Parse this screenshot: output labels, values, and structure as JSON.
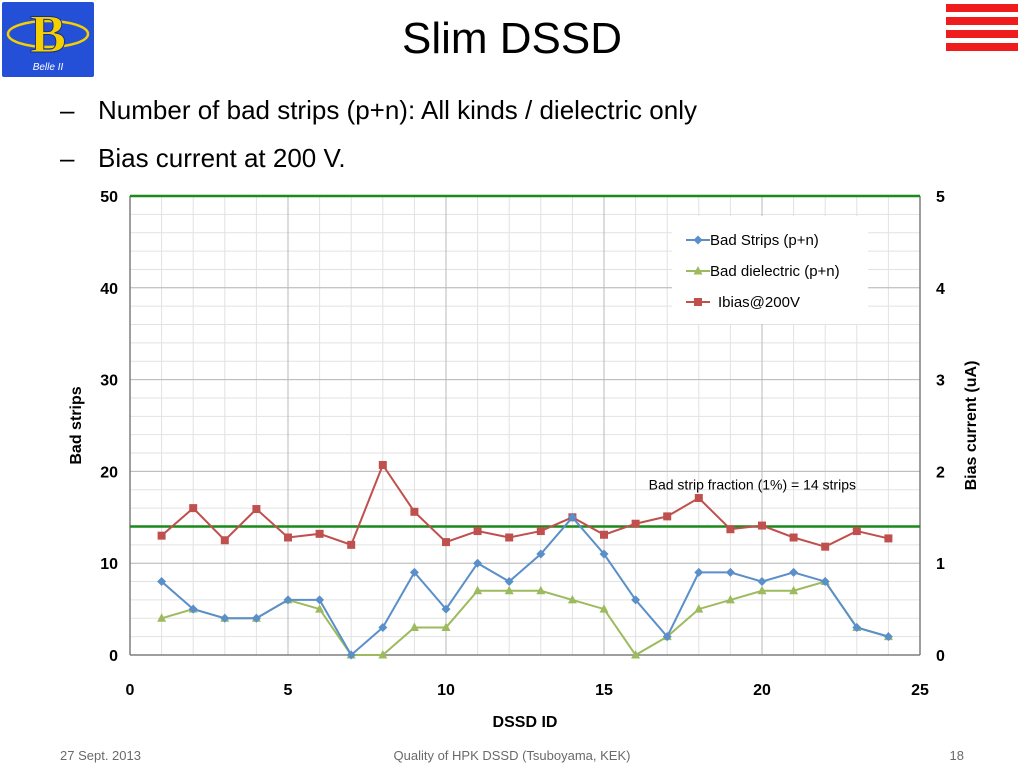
{
  "slide": {
    "title": "Slim DSSD",
    "logo_text": "Belle II",
    "bullets": [
      {
        "dash": "–",
        "text": "Number of bad strips (p+n):   All kinds / dielectric only"
      },
      {
        "dash": "–",
        "text": "Bias current at 200 V."
      }
    ],
    "footer": {
      "date": "27 Sept. 2013",
      "center": "Quality of HPK DSSD (Tsuboyama, KEK)",
      "page": "18"
    }
  },
  "colors": {
    "logo_bg": "#2450d8",
    "logo_mark": "#f5d000",
    "menu_bars": "#ee1c1c",
    "reference_lines": "#1a8a1a",
    "grid": "#cfcfcf"
  },
  "chart_data": {
    "type": "line",
    "xlabel": "DSSD ID",
    "ylabel": "Bad strips",
    "y2label": "Bias current (uA)",
    "xlim": [
      0,
      25
    ],
    "ylim": [
      0,
      50
    ],
    "y2lim": [
      0,
      5
    ],
    "xticks": [
      0,
      5,
      10,
      15,
      20,
      25
    ],
    "yticks": [
      0,
      10,
      20,
      30,
      40,
      50
    ],
    "y2ticks": [
      0,
      1,
      2,
      3,
      4,
      5
    ],
    "grid": true,
    "legend_position": "top-right",
    "reference_lines": [
      {
        "axis": "y",
        "value": 14,
        "label": "Bad strip fraction (1%) = 14 strips",
        "color": "#1a8a1a"
      },
      {
        "axis": "y",
        "value": 50,
        "label": "",
        "color": "#1a8a1a"
      }
    ],
    "x": [
      1,
      2,
      3,
      4,
      5,
      6,
      7,
      8,
      9,
      10,
      11,
      12,
      13,
      14,
      15,
      16,
      17,
      18,
      19,
      20,
      21,
      22,
      23,
      24
    ],
    "series": [
      {
        "name": "Bad Strips (p+n)",
        "axis": "left",
        "color": "#5b8fc9",
        "marker": "diamond",
        "values": [
          8,
          5,
          4,
          4,
          6,
          6,
          0,
          3,
          9,
          5,
          10,
          8,
          11,
          15,
          11,
          6,
          2,
          9,
          9,
          8,
          9,
          8,
          3,
          2
        ]
      },
      {
        "name": "Bad dielectric (p+n)",
        "axis": "left",
        "color": "#9dbb5e",
        "marker": "triangle",
        "values": [
          4,
          5,
          4,
          4,
          6,
          5,
          0,
          0,
          3,
          3,
          7,
          7,
          7,
          6,
          5,
          0,
          2,
          5,
          6,
          7,
          7,
          8,
          3,
          2
        ]
      },
      {
        "name": "Ibias@200V",
        "axis": "right",
        "color": "#c0504d",
        "marker": "square",
        "values": [
          1.3,
          1.6,
          1.25,
          1.59,
          1.28,
          1.32,
          1.2,
          2.07,
          1.56,
          1.23,
          1.35,
          1.28,
          1.35,
          1.5,
          1.31,
          1.43,
          1.51,
          1.71,
          1.37,
          1.41,
          1.28,
          1.18,
          1.35,
          1.27
        ]
      }
    ]
  }
}
